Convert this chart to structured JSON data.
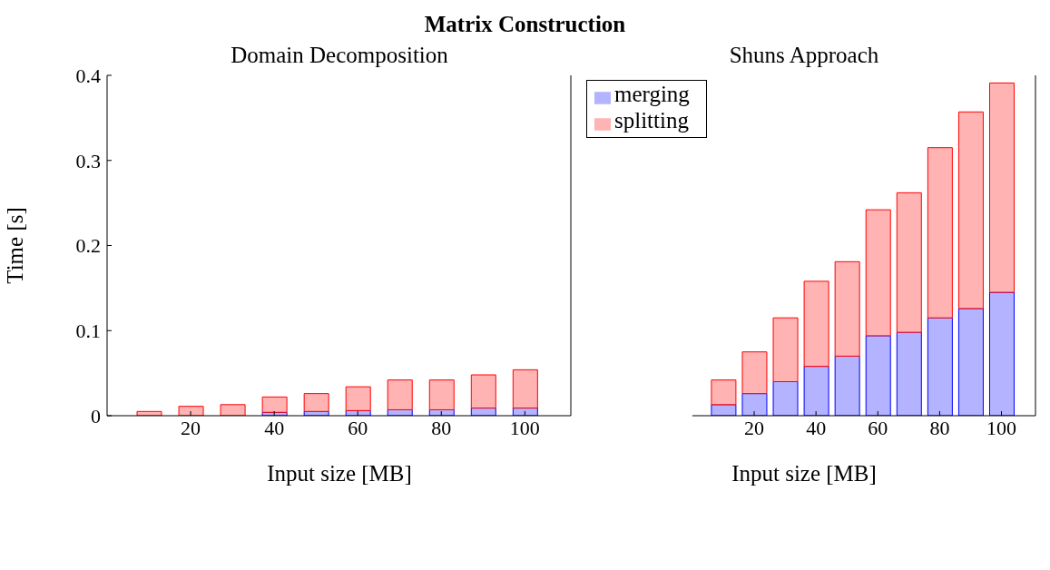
{
  "chart_data": [
    {
      "type": "bar",
      "title": "Matrix Construction",
      "subtitle": "Domain Decomposition",
      "xlabel": "Input size [MB]",
      "ylabel": "Time [s]",
      "stacked": true,
      "x": [
        10,
        20,
        30,
        40,
        50,
        60,
        70,
        80,
        90,
        100
      ],
      "xlim": [
        0,
        111
      ],
      "xticks": [
        20,
        40,
        60,
        80,
        100
      ],
      "ylim": [
        0,
        0.4
      ],
      "yticks": [
        0,
        0.1,
        0.2,
        0.3,
        0.4
      ],
      "series": [
        {
          "color": "#b3b3ff",
          "values": [
            null,
            null,
            null,
            0.004,
            0.005,
            0.006,
            0.007,
            0.007,
            0.009,
            0.009
          ]
        },
        {
          "color": "#ffb3b3",
          "values": [
            0.005,
            0.011,
            0.013,
            0.018,
            0.021,
            0.028,
            0.035,
            0.035,
            0.039,
            0.045
          ]
        }
      ]
    },
    {
      "type": "bar",
      "subtitle": "Shuns Approach",
      "xlabel": "Input size [MB]",
      "stacked": true,
      "legend": "top left",
      "tick_labels": "x",
      "x": [
        10,
        20,
        30,
        40,
        50,
        60,
        70,
        80,
        90,
        100
      ],
      "xlim": [
        0,
        111
      ],
      "xticks": [
        20,
        40,
        60,
        80,
        100
      ],
      "ylim": [
        0,
        0.4
      ],
      "yticks": [
        0,
        0.1,
        0.2,
        0.3,
        0.4
      ],
      "series": [
        {
          "name": "merging",
          "color": "#b3b3ff",
          "values": [
            0.013,
            0.026,
            0.04,
            0.058,
            0.07,
            0.094,
            0.098,
            0.115,
            0.126,
            0.145
          ]
        },
        {
          "name": "splitting",
          "color": "#ffb3b3",
          "values": [
            0.029,
            0.049,
            0.075,
            0.1,
            0.111,
            0.148,
            0.164,
            0.2,
            0.231,
            0.246
          ]
        }
      ]
    }
  ]
}
